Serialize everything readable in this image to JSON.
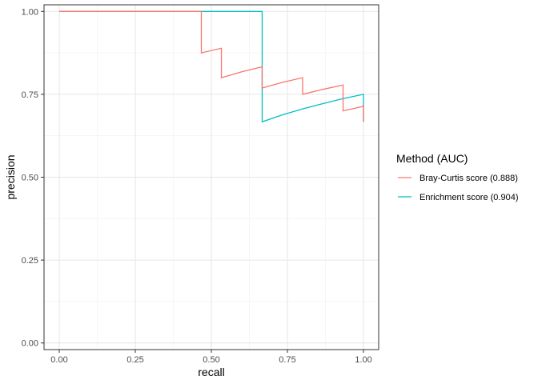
{
  "chart_data": {
    "type": "line",
    "xlabel": "recall",
    "ylabel": "precision",
    "xlim": [
      -0.05,
      1.05
    ],
    "ylim": [
      -0.02,
      1.02
    ],
    "x_ticks": [
      "0.00",
      "0.25",
      "0.50",
      "0.75",
      "1.00"
    ],
    "y_ticks": [
      "0.00",
      "0.25",
      "0.50",
      "0.75",
      "1.00"
    ],
    "grid": true,
    "legend": {
      "title": "Method (AUC)",
      "placement": "right",
      "entries": [
        "Bray-Curtis score (0.888)",
        "Enrichment score (0.904)"
      ]
    },
    "series": [
      {
        "name": "Bray-Curtis score (0.888)",
        "color": "#F8766D",
        "x": [
          0.0,
          0.467,
          0.467,
          0.533,
          0.533,
          0.6,
          0.667,
          0.667,
          0.733,
          0.8,
          0.8,
          0.867,
          0.933,
          0.933,
          1.0,
          1.0
        ],
        "y": [
          1.0,
          1.0,
          0.875,
          0.889,
          0.8,
          0.818,
          0.833,
          0.769,
          0.786,
          0.8,
          0.75,
          0.765,
          0.778,
          0.7,
          0.714,
          0.667
        ]
      },
      {
        "name": "Enrichment score (0.904)",
        "color": "#00BFC4",
        "x": [
          0.0,
          0.667,
          0.667,
          0.733,
          0.8,
          0.867,
          0.933,
          1.0,
          1.0
        ],
        "y": [
          1.0,
          1.0,
          0.667,
          0.688,
          0.706,
          0.722,
          0.737,
          0.75,
          0.667
        ]
      }
    ]
  }
}
